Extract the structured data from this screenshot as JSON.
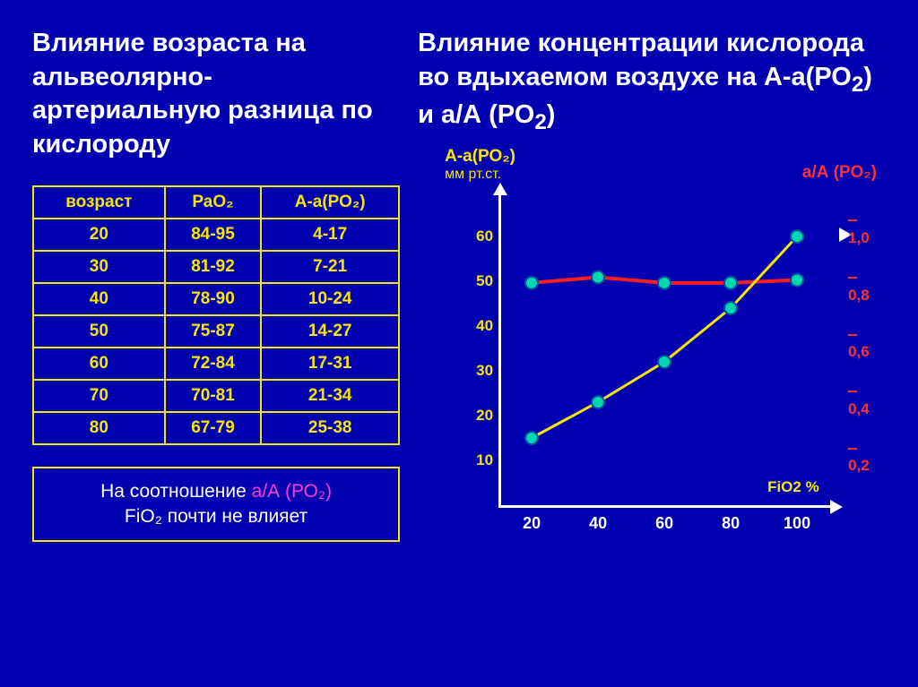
{
  "left_title": "Влияние возраста на альвеолярно-артериальную разница по кислороду",
  "right_title_pre": "Влияние концентрации кислорода во вдыхаемом воздухе на А-а(РО",
  "right_title_sub1": "2",
  "right_title_mid": ") и а/А (РО",
  "right_title_sub2": "2",
  "right_title_post": ")",
  "table": {
    "headers": [
      "возраст",
      "РаО₂",
      "А-а(РО₂)"
    ],
    "rows": [
      [
        "20",
        "84-95",
        "4-17"
      ],
      [
        "30",
        "81-92",
        "7-21"
      ],
      [
        "40",
        "78-90",
        "10-24"
      ],
      [
        "50",
        "75-87",
        "14-27"
      ],
      [
        "60",
        "72-84",
        "17-31"
      ],
      [
        "70",
        "70-81",
        "21-34"
      ],
      [
        "80",
        "67-79",
        "25-38"
      ]
    ],
    "border_color": "#f7e600",
    "text_color": "#f7e600"
  },
  "note": {
    "pre": "На соотношение ",
    "hl": "а/А (РО₂)",
    "post_line2": "FiO₂ почти не влияет"
  },
  "chart": {
    "y1_label": "А-а(РО₂)",
    "y1_unit": "мм рт.ст.",
    "y2_label": "а/А (РО₂)",
    "x_label": "FiO2 %",
    "x_ticks": [
      20,
      40,
      60,
      80,
      100
    ],
    "y1_ticks": [
      10,
      20,
      30,
      40,
      50,
      60
    ],
    "y2_ticks": [
      "0,2",
      "0,4",
      "0,6",
      "0,8",
      "1,0"
    ],
    "y1_range": [
      0,
      70
    ],
    "y2_range": [
      0,
      1.1
    ],
    "x_range": [
      10,
      110
    ],
    "series_yellow": {
      "x": [
        20,
        40,
        60,
        80,
        100
      ],
      "y": [
        15,
        23,
        32,
        44,
        60
      ],
      "color": "#f7e600",
      "width": 3
    },
    "series_red": {
      "x": [
        20,
        40,
        60,
        80,
        100
      ],
      "y2": [
        0.78,
        0.8,
        0.78,
        0.78,
        0.79
      ],
      "color": "#ff1e1e",
      "width": 4
    },
    "marker_fill": "#00d7b0",
    "marker_stroke": "#0050a0",
    "marker_r": 7,
    "axis_color": "#ffffff",
    "background": "#0000b0"
  }
}
